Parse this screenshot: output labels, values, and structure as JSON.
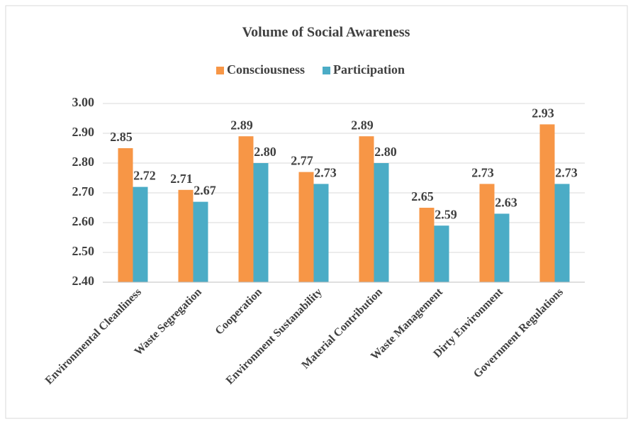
{
  "chart_data": {
    "type": "bar",
    "title": "Volume of Social Awareness",
    "categories": [
      "Environmental Cleanliness",
      "Waste Segregation",
      "Cooperation",
      "Environment Sustanability",
      "Material Contribution",
      "Waste Management",
      "Dirty Environment",
      "Government Regulations"
    ],
    "series": [
      {
        "name": "Consciousness",
        "color": "#f79646",
        "values": [
          2.85,
          2.71,
          2.89,
          2.77,
          2.89,
          2.65,
          2.73,
          2.93
        ],
        "value_labels": [
          "2.85",
          "2.71",
          "2.89",
          "2.77",
          "2.89",
          "2.65",
          "2.73",
          "2.93"
        ]
      },
      {
        "name": "Participation",
        "color": "#4bacc6",
        "values": [
          2.72,
          2.67,
          2.8,
          2.73,
          2.8,
          2.59,
          2.63,
          2.73
        ],
        "value_labels": [
          "2.72",
          "2.67",
          "2.80",
          "2.73",
          "2.80",
          "2.59",
          "2.63",
          "2.73"
        ]
      }
    ],
    "ylim": [
      2.4,
      3.0
    ],
    "yticks": [
      {
        "value": 2.4,
        "label": "2.40"
      },
      {
        "value": 2.5,
        "label": "2.50"
      },
      {
        "value": 2.6,
        "label": "2.60"
      },
      {
        "value": 2.7,
        "label": "2.70"
      },
      {
        "value": 2.8,
        "label": "2.80"
      },
      {
        "value": 2.9,
        "label": "2.90"
      },
      {
        "value": 3.0,
        "label": "3.00"
      }
    ],
    "grid": true,
    "legend": "top"
  }
}
